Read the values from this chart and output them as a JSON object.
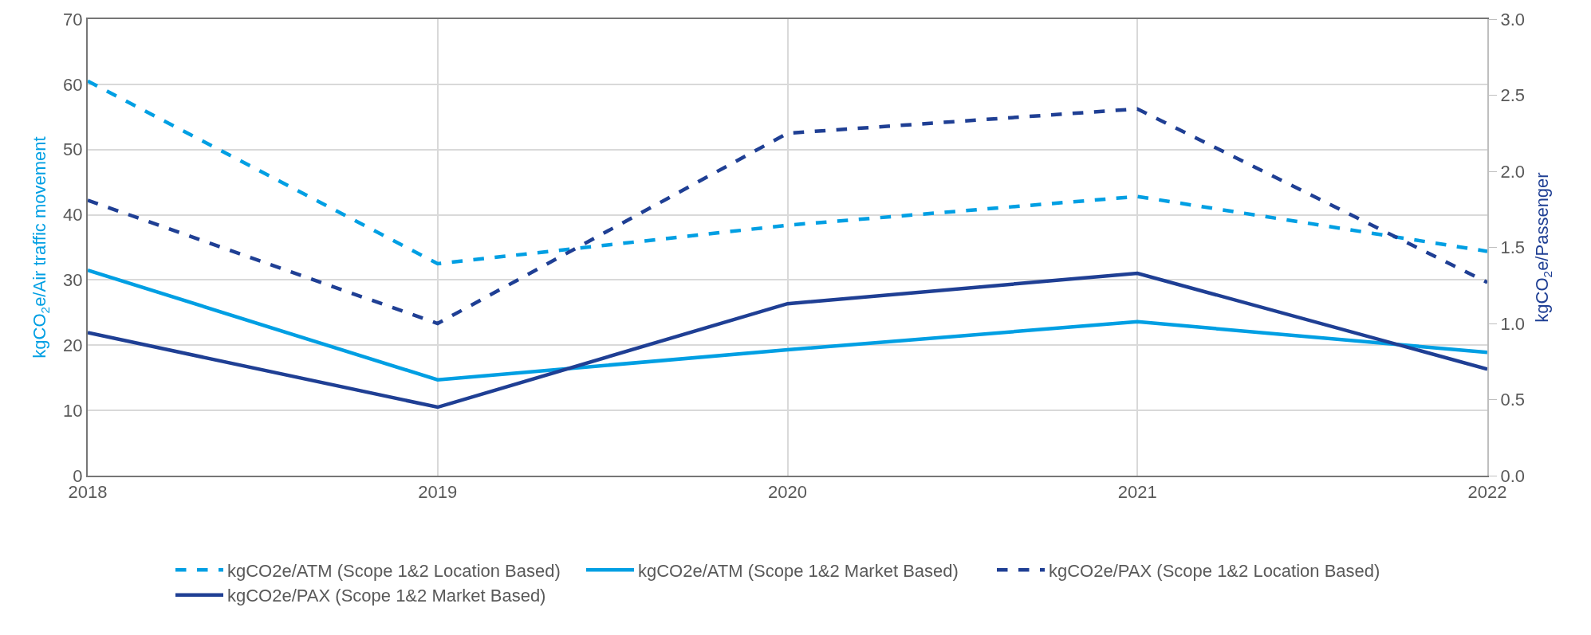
{
  "chart_data": {
    "type": "line",
    "x": [
      2018,
      2019,
      2020,
      2021,
      2022
    ],
    "xlim": [
      2018,
      2022
    ],
    "xticks": [
      2018,
      2019,
      2020,
      2021,
      2022
    ],
    "ylim": [
      0,
      70
    ],
    "yticks": [
      0,
      10,
      20,
      30,
      40,
      50,
      60,
      70
    ],
    "y2lim": [
      0,
      3
    ],
    "y2ticks": [
      {
        "value": 0,
        "label": "0.0"
      },
      {
        "value": 0.5,
        "label": "0.5"
      },
      {
        "value": 1,
        "label": "1.0"
      },
      {
        "value": 1.5,
        "label": "1.5"
      },
      {
        "value": 2,
        "label": "2.0"
      },
      {
        "value": 2.5,
        "label": "2.5"
      },
      {
        "value": 3,
        "label": "3.0"
      }
    ],
    "ylabel": "kgCO$_{2}$e/Air traffic movement",
    "y2label": "kgCO$_{2}$e/Passenger",
    "grid": true,
    "legend": "bottom",
    "marker": "none",
    "series": [
      {
        "name": "kgCO2e/ATM (Scope 1&2 Location Based)",
        "color": "#009fe3",
        "line_style": "dashed",
        "values": [
          60.5,
          32.5,
          38.4,
          42.8,
          34.4
        ]
      },
      {
        "name": "kgCO2e/ATM (Scope 1&2 Market Based)",
        "color": "#009fe3",
        "line_style": "solid",
        "values": [
          31.5,
          14.7,
          19.3,
          23.6,
          18.9
        ]
      },
      {
        "name": "kgCO2e/PAX (Scope 1&2 Location Based)",
        "color": "#1f3f94",
        "line_style": "dashed",
        "axis": "y2",
        "values": [
          1.81,
          1.0,
          2.25,
          2.41,
          1.27
        ]
      },
      {
        "name": "kgCO2e/PAX (Scope 1&2 Market Based)",
        "color": "#1f3f94",
        "line_style": "solid",
        "axis": "y2",
        "values": [
          0.94,
          0.45,
          1.13,
          1.33,
          0.7
        ]
      }
    ]
  }
}
